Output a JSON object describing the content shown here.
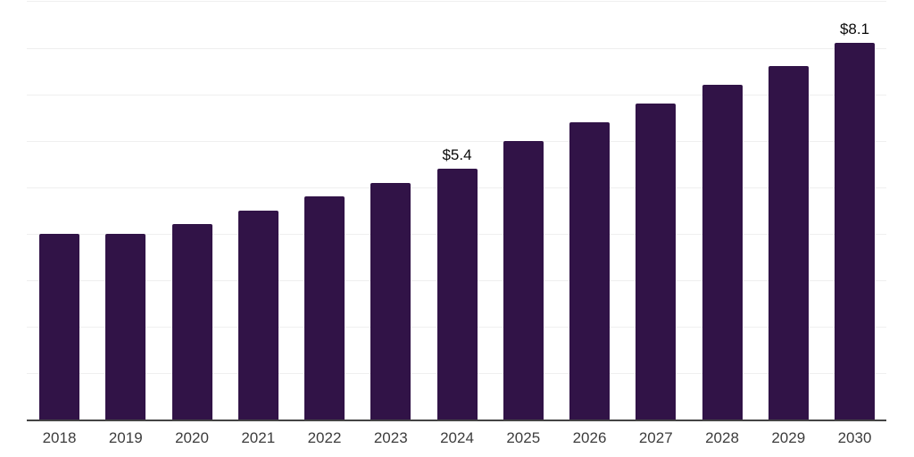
{
  "chart_data": {
    "type": "bar",
    "title": "",
    "xlabel": "",
    "ylabel": "",
    "categories": [
      "2018",
      "2019",
      "2020",
      "2021",
      "2022",
      "2023",
      "2024",
      "2025",
      "2026",
      "2027",
      "2028",
      "2029",
      "2030"
    ],
    "values": [
      4.0,
      4.0,
      4.2,
      4.5,
      4.8,
      5.1,
      5.4,
      6.0,
      6.4,
      6.8,
      7.2,
      7.6,
      8.1
    ],
    "value_labels": {
      "2024": "$5.4",
      "2030": "$8.1"
    },
    "ylim": [
      0,
      9
    ],
    "grid": "horizontal",
    "legend": "none",
    "colors": {
      "bar": "#311347",
      "axis_line": "#444444",
      "gridline": "#efefef",
      "tick_label": "#3d3d3d",
      "value_label": "#0a0a0a",
      "background": "#ffffff"
    }
  }
}
